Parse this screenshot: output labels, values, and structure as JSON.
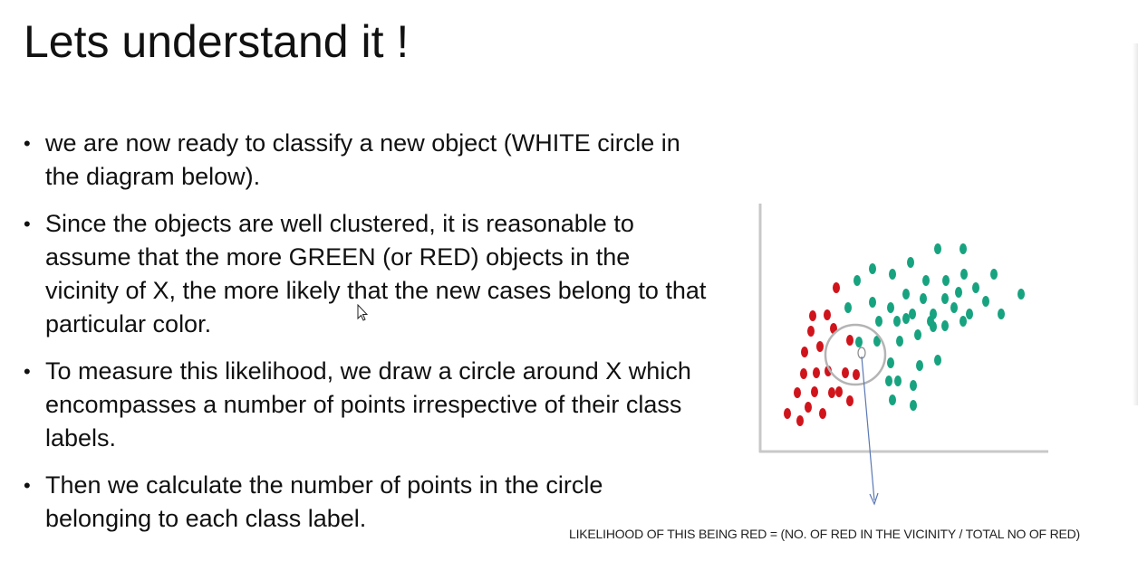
{
  "slide": {
    "title": "Lets understand it !",
    "bullets": [
      "we are now ready to classify a new object (WHITE circle in the diagram below).",
      "Since the objects are well clustered, it is reasonable to assume that the more GREEN (or RED) objects in the vicinity of X, the more likely that the new cases belong to that particular color.",
      "To measure this likelihood, we draw a circle around X which encompasses a number of points irrespective of their class labels.",
      "Then we calculate the number of points in the circle belonging to each class label."
    ],
    "bullet_glyph": "•",
    "caption": "LIKELIHOOD OF THIS BEING RED = (NO. OF RED IN THE VICINITY / TOTAL NO OF RED)"
  },
  "diagram": {
    "colors": {
      "red": "#d0141c",
      "green": "#17a37f",
      "axis": "#c8c8c8",
      "circle": "#b4b4b4",
      "arrow": "#5a78b4"
    }
  }
}
